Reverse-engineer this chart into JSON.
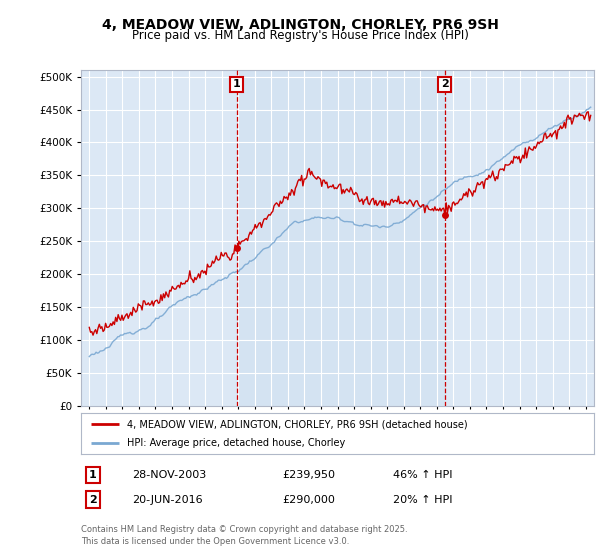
{
  "title_line1": "4, MEADOW VIEW, ADLINGTON, CHORLEY, PR6 9SH",
  "title_line2": "Price paid vs. HM Land Registry's House Price Index (HPI)",
  "ytick_values": [
    0,
    50000,
    100000,
    150000,
    200000,
    250000,
    300000,
    350000,
    400000,
    450000,
    500000
  ],
  "ylim": [
    0,
    510000
  ],
  "xlim_start": 1994.5,
  "xlim_end": 2025.5,
  "sale1_date": 2003.91,
  "sale1_price": 239950,
  "sale2_date": 2016.47,
  "sale2_price": 290000,
  "sale1_label": "1",
  "sale2_label": "2",
  "sale1_info": "28-NOV-2003",
  "sale1_amount": "£239,950",
  "sale1_hpi": "46% ↑ HPI",
  "sale2_info": "20-JUN-2016",
  "sale2_amount": "£290,000",
  "sale2_hpi": "20% ↑ HPI",
  "legend1": "4, MEADOW VIEW, ADLINGTON, CHORLEY, PR6 9SH (detached house)",
  "legend2": "HPI: Average price, detached house, Chorley",
  "footer": "Contains HM Land Registry data © Crown copyright and database right 2025.\nThis data is licensed under the Open Government Licence v3.0.",
  "line_color_red": "#cc0000",
  "line_color_blue": "#7aa8d2",
  "dashed_color": "#cc0000",
  "bg_plot": "#dce8f5",
  "bg_highlight": "#cddff0",
  "bg_fig": "#ffffff",
  "grid_color": "#ffffff",
  "sale_box_color": "#cc0000"
}
